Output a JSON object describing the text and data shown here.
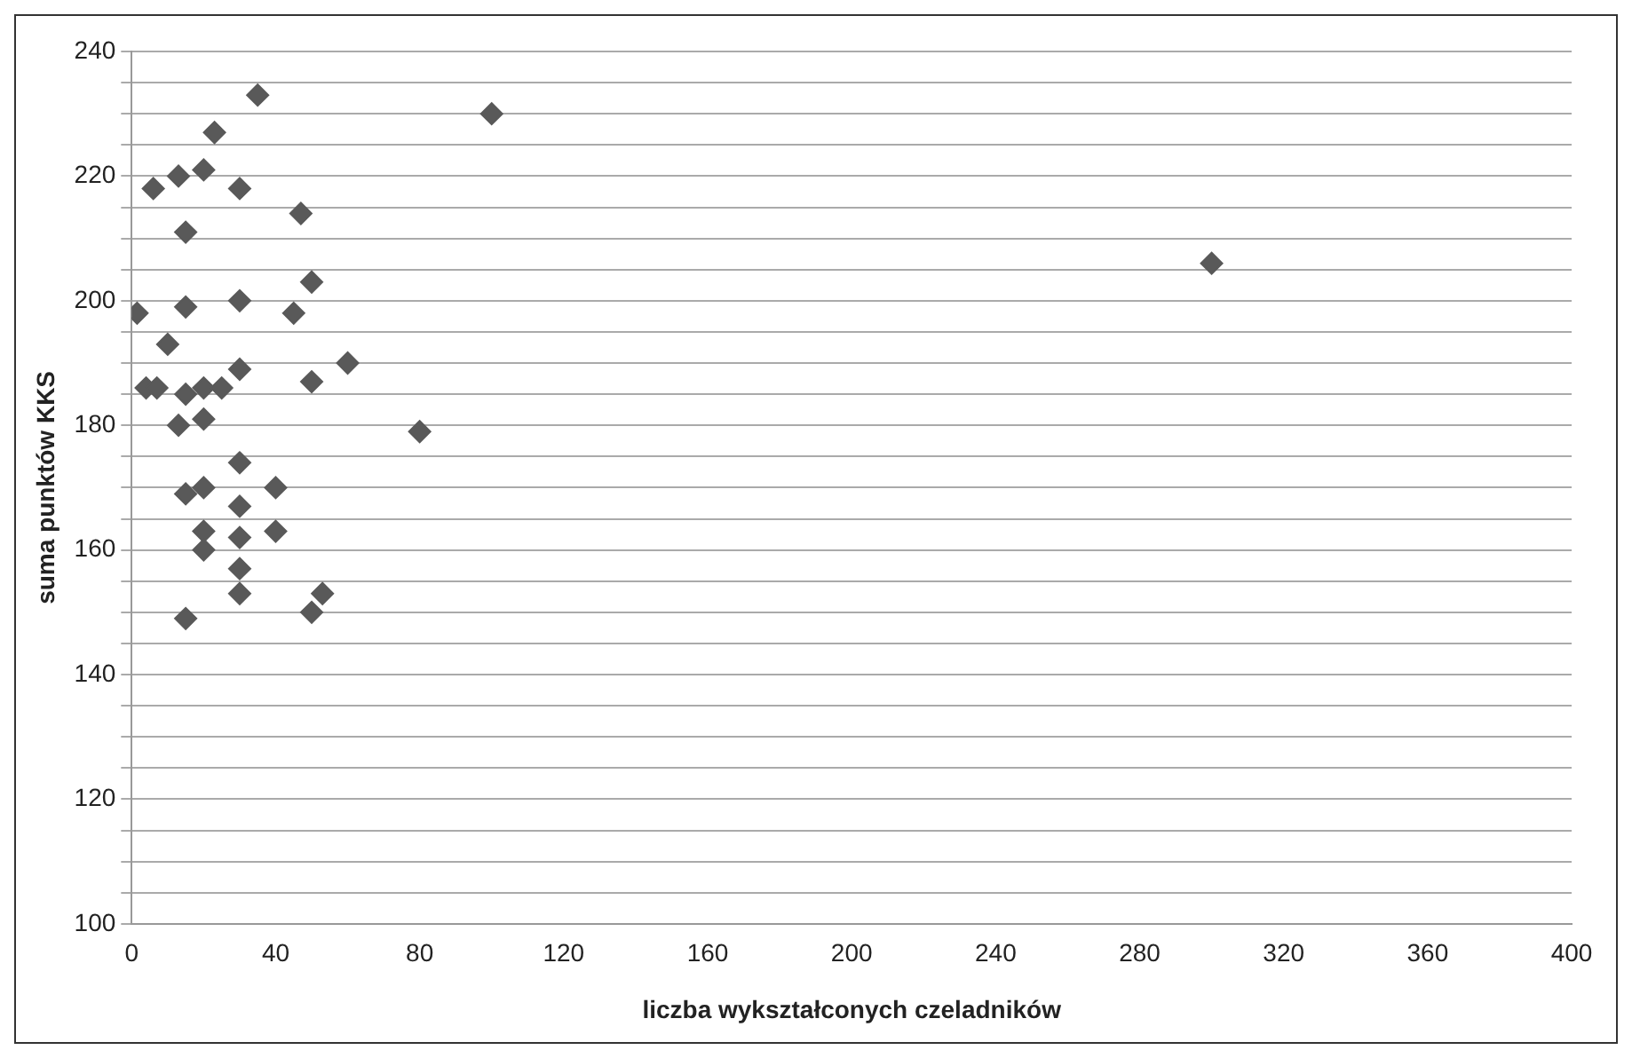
{
  "chart_data": {
    "type": "scatter",
    "xlabel": "liczba wykształconych czeladników",
    "ylabel": "suma punktów KKS",
    "x": [
      1.5,
      4,
      7,
      6,
      10,
      13,
      13,
      15,
      15,
      15,
      15,
      15,
      20,
      20,
      20,
      20,
      20,
      20,
      23,
      25,
      30,
      30,
      30,
      30,
      30,
      30,
      30,
      30,
      35,
      40,
      40,
      45,
      47,
      50,
      50,
      50,
      53,
      60,
      80,
      100,
      300
    ],
    "values": [
      198,
      186,
      186,
      218,
      193,
      180,
      220,
      211,
      199,
      185,
      169,
      149,
      221,
      186,
      181,
      170,
      163,
      160,
      227,
      186,
      218,
      200,
      189,
      174,
      167,
      162,
      157,
      153,
      233,
      170,
      163,
      198,
      214,
      203,
      187,
      150,
      153,
      190,
      179,
      230,
      206
    ],
    "color": "#595959",
    "marker": "diamond",
    "grid": "y",
    "xlim": [
      0,
      400
    ],
    "xticks": [
      0,
      40,
      80,
      120,
      160,
      200,
      240,
      280,
      320,
      360,
      400
    ],
    "ylim": [
      100,
      240
    ],
    "yticks": [
      100,
      {
        "value": 105,
        "label": null
      },
      {
        "value": 110,
        "label": null
      },
      {
        "value": 115,
        "label": null
      },
      120,
      {
        "value": 125,
        "label": null
      },
      {
        "value": 130,
        "label": null
      },
      {
        "value": 135,
        "label": null
      },
      140,
      {
        "value": 145,
        "label": null
      },
      {
        "value": 150,
        "label": null
      },
      {
        "value": 155,
        "label": null
      },
      160,
      {
        "value": 165,
        "label": null
      },
      {
        "value": 170,
        "label": null
      },
      {
        "value": 175,
        "label": null
      },
      180,
      {
        "value": 185,
        "label": null
      },
      {
        "value": 190,
        "label": null
      },
      {
        "value": 195,
        "label": null
      },
      200,
      {
        "value": 205,
        "label": null
      },
      {
        "value": 210,
        "label": null
      },
      {
        "value": 215,
        "label": null
      },
      220,
      {
        "value": 225,
        "label": null
      },
      {
        "value": 230,
        "label": null
      },
      {
        "value": 235,
        "label": null
      },
      240
    ],
    "legend": false
  }
}
